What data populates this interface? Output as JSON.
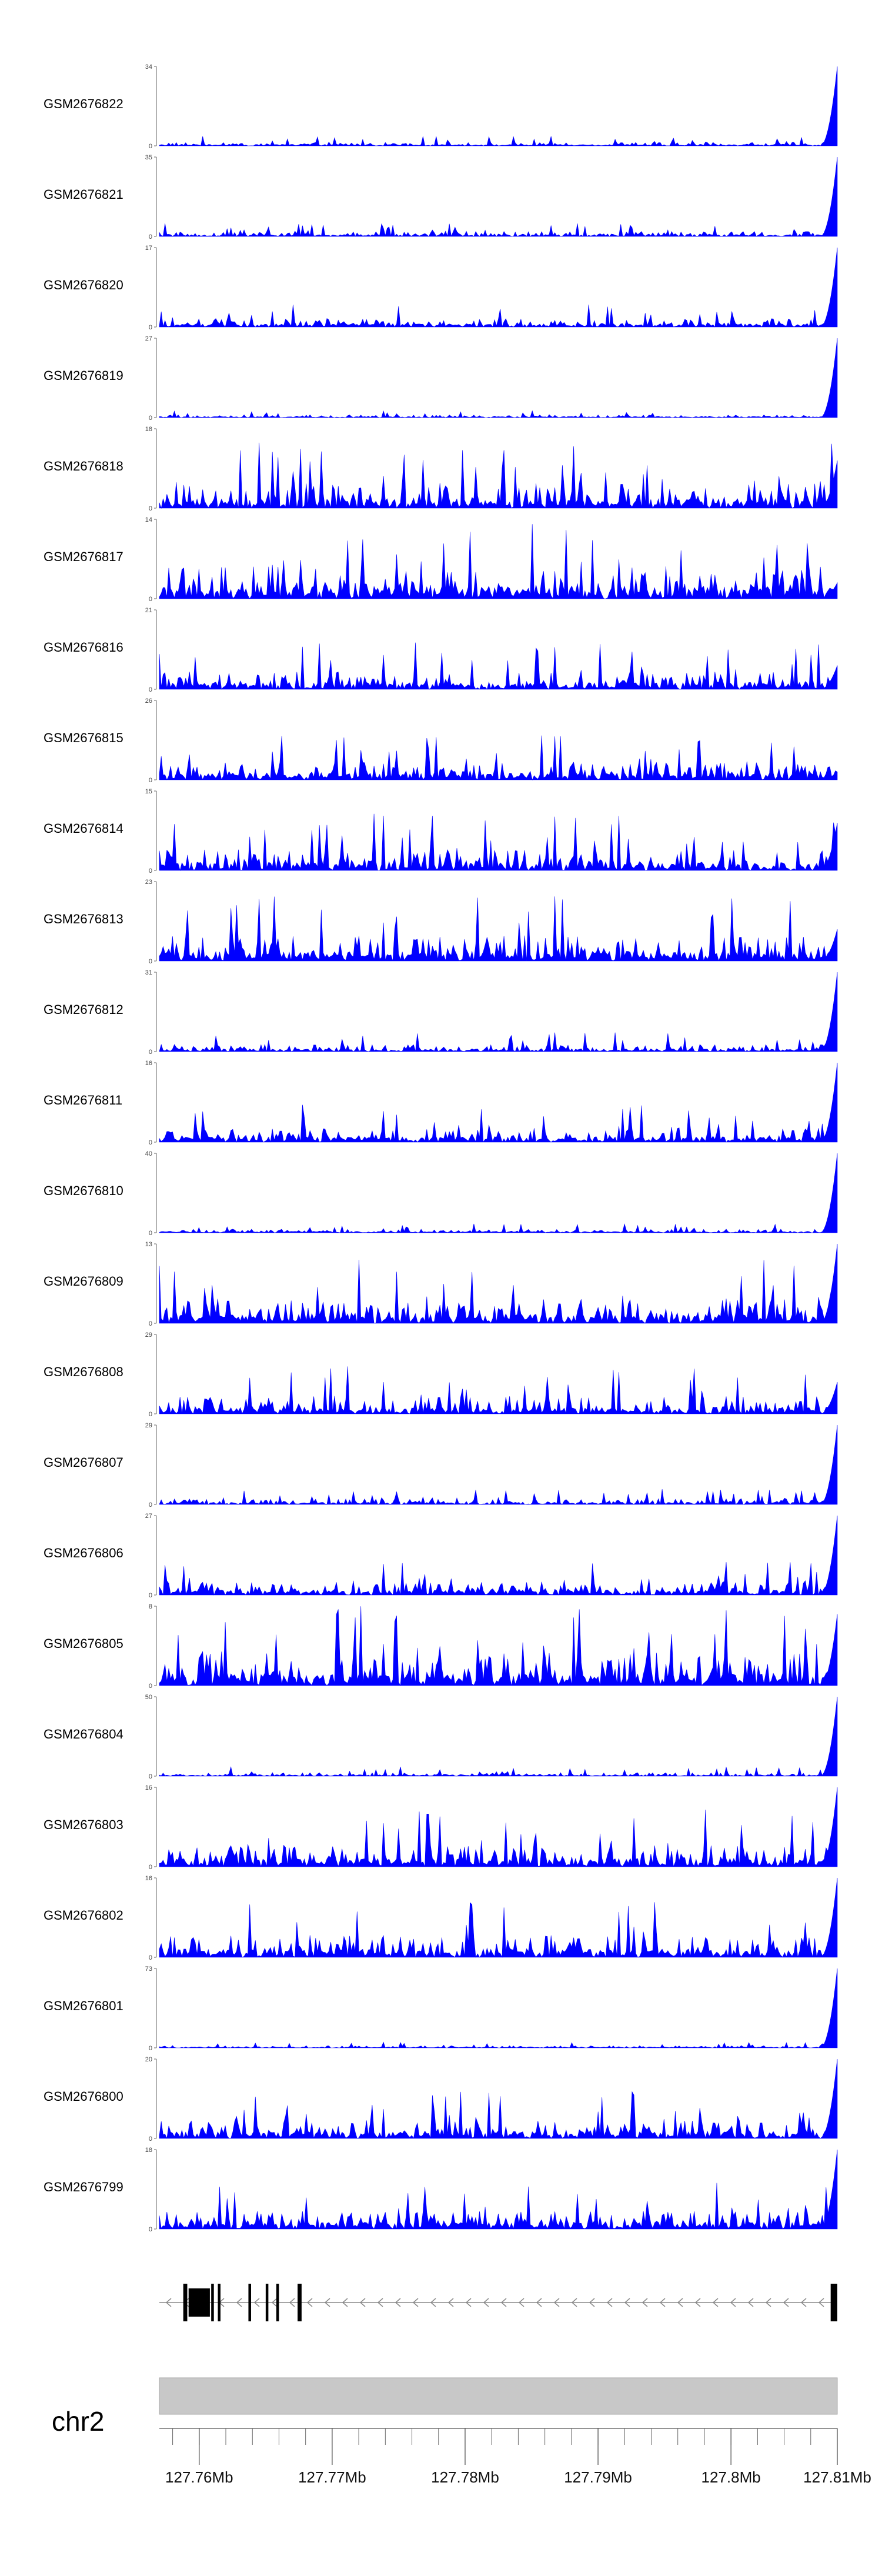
{
  "chart_data": {
    "type": "area",
    "title": "",
    "xlabel": "",
    "ylabel": "",
    "x_range_mb": [
      127.757,
      127.808
    ],
    "series_color": "#0000ff",
    "series": [
      {
        "name": "GSM2676822",
        "ymax": 34,
        "ymin": 0,
        "baseline_level": 0.05,
        "end_peak": 1.0,
        "bimodal_center": 0.0
      },
      {
        "name": "GSM2676821",
        "ymax": 35,
        "ymin": 0,
        "baseline_level": 0.07,
        "end_peak": 1.0,
        "bimodal_center": 0.0
      },
      {
        "name": "GSM2676820",
        "ymax": 17,
        "ymin": 0,
        "baseline_level": 0.12,
        "end_peak": 1.0,
        "bimodal_center": 0.0
      },
      {
        "name": "GSM2676819",
        "ymax": 27,
        "ymin": 0,
        "baseline_level": 0.04,
        "end_peak": 1.0,
        "bimodal_center": 0.0
      },
      {
        "name": "GSM2676818",
        "ymax": 18,
        "ymin": 0,
        "baseline_level": 0.35,
        "end_peak": 0.6,
        "bimodal_center": 0.0
      },
      {
        "name": "GSM2676817",
        "ymax": 14,
        "ymin": 0,
        "baseline_level": 0.45,
        "end_peak": 0.2,
        "bimodal_center": 0.0
      },
      {
        "name": "GSM2676816",
        "ymax": 21,
        "ymin": 0,
        "baseline_level": 0.25,
        "end_peak": 0.3,
        "bimodal_center": 0.0
      },
      {
        "name": "GSM2676815",
        "ymax": 26,
        "ymin": 0,
        "baseline_level": 0.25,
        "end_peak": 0.1,
        "bimodal_center": 0.0
      },
      {
        "name": "GSM2676814",
        "ymax": 15,
        "ymin": 0,
        "baseline_level": 0.3,
        "end_peak": 0.6,
        "bimodal_center": 0.0
      },
      {
        "name": "GSM2676813",
        "ymax": 23,
        "ymin": 0,
        "baseline_level": 0.35,
        "end_peak": 0.4,
        "bimodal_center": 0.0
      },
      {
        "name": "GSM2676812",
        "ymax": 31,
        "ymin": 0,
        "baseline_level": 0.1,
        "end_peak": 1.0,
        "bimodal_center": 0.0
      },
      {
        "name": "GSM2676811",
        "ymax": 16,
        "ymin": 0,
        "baseline_level": 0.2,
        "end_peak": 1.0,
        "bimodal_center": 0.0
      },
      {
        "name": "GSM2676810",
        "ymax": 40,
        "ymin": 0,
        "baseline_level": 0.05,
        "end_peak": 1.0,
        "bimodal_center": 0.0
      },
      {
        "name": "GSM2676809",
        "ymax": 13,
        "ymin": 0,
        "baseline_level": 0.35,
        "end_peak": 1.0,
        "bimodal_center": 0.0
      },
      {
        "name": "GSM2676808",
        "ymax": 29,
        "ymin": 0,
        "baseline_level": 0.25,
        "end_peak": 0.4,
        "bimodal_center": 0.0
      },
      {
        "name": "GSM2676807",
        "ymax": 29,
        "ymin": 0,
        "baseline_level": 0.08,
        "end_peak": 1.0,
        "bimodal_center": 0.0
      },
      {
        "name": "GSM2676806",
        "ymax": 27,
        "ymin": 0,
        "baseline_level": 0.18,
        "end_peak": 1.0,
        "bimodal_center": 0.0
      },
      {
        "name": "GSM2676805",
        "ymax": 8,
        "ymin": 0,
        "baseline_level": 0.45,
        "end_peak": 0.9,
        "bimodal_center": 0.0
      },
      {
        "name": "GSM2676804",
        "ymax": 50,
        "ymin": 0,
        "baseline_level": 0.05,
        "end_peak": 1.0,
        "bimodal_center": 0.0
      },
      {
        "name": "GSM2676803",
        "ymax": 16,
        "ymin": 0,
        "baseline_level": 0.3,
        "end_peak": 1.0,
        "bimodal_center": 0.0
      },
      {
        "name": "GSM2676802",
        "ymax": 16,
        "ymin": 0,
        "baseline_level": 0.3,
        "end_peak": 1.0,
        "bimodal_center": 0.0
      },
      {
        "name": "GSM2676801",
        "ymax": 73,
        "ymin": 0,
        "baseline_level": 0.03,
        "end_peak": 1.0,
        "bimodal_center": 0.0
      },
      {
        "name": "GSM2676800",
        "ymax": 20,
        "ymin": 0,
        "baseline_level": 0.25,
        "end_peak": 1.0,
        "bimodal_center": 0.0
      },
      {
        "name": "GSM2676799",
        "ymax": 18,
        "ymin": 0,
        "baseline_level": 0.25,
        "end_peak": 1.0,
        "bimodal_center": 0.0
      }
    ],
    "gene_track": {
      "strand": "-",
      "exons": [
        {
          "start": 127.7588,
          "end": 127.7591
        },
        {
          "start": 127.7592,
          "end": 127.7608
        },
        {
          "start": 127.7609,
          "end": 127.7611
        },
        {
          "start": 127.7614,
          "end": 127.7616
        },
        {
          "start": 127.7637,
          "end": 127.7639
        },
        {
          "start": 127.765,
          "end": 127.7652
        },
        {
          "start": 127.7658,
          "end": 127.766
        },
        {
          "start": 127.7674,
          "end": 127.7677
        },
        {
          "start": 127.8075,
          "end": 127.808
        }
      ],
      "intron_start": 127.757,
      "intron_end": 127.808
    },
    "chromosome": "chr2",
    "xaxis": {
      "major_ticks": [
        {
          "value": 127.76,
          "label": "127.76Mb"
        },
        {
          "value": 127.77,
          "label": "127.77Mb"
        },
        {
          "value": 127.78,
          "label": "127.78Mb"
        },
        {
          "value": 127.79,
          "label": "127.79Mb"
        },
        {
          "value": 127.8,
          "label": "127.8Mb"
        },
        {
          "value": 127.81,
          "label": "127.81Mb"
        }
      ],
      "minor_step": 0.002
    },
    "background_color": "#ffffff",
    "ideogram_color": "#c8c8c8"
  }
}
